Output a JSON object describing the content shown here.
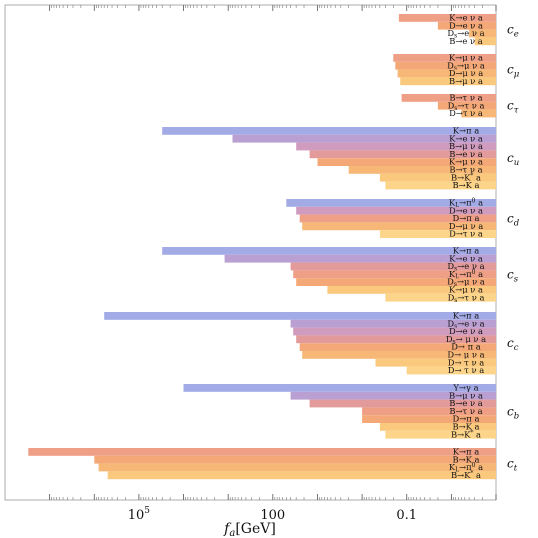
{
  "chart_data": {
    "type": "bar",
    "orientation": "horizontal",
    "xlabel": "f_a[GeV]",
    "x_scale": "log",
    "x_tick_labels": [
      "10^5",
      "100",
      "0.1"
    ],
    "x_ticks": [
      100000,
      100,
      0.1
    ],
    "x_range": [
      100000000,
      0.001
    ],
    "groups": [
      {
        "name": "c_e",
        "label": "c",
        "sub": "e",
        "bars": [
          {
            "label": "K→e ν a",
            "fa": 0.15
          },
          {
            "label": "D→e ν a",
            "fa": 0.02
          },
          {
            "label": "D_s→e ν a",
            "fa": 0.004
          },
          {
            "label": "B→e ν a",
            "fa": 0.003
          }
        ]
      },
      {
        "name": "c_mu",
        "label": "c",
        "sub": "μ",
        "bars": [
          {
            "label": "K→μ ν a",
            "fa": 0.2
          },
          {
            "label": "D_s→μ ν a",
            "fa": 0.18
          },
          {
            "label": "D→μ ν a",
            "fa": 0.16
          },
          {
            "label": "B→μ ν a",
            "fa": 0.14
          }
        ]
      },
      {
        "name": "c_tau",
        "label": "c",
        "sub": "τ",
        "bars": [
          {
            "label": "B→τ ν a",
            "fa": 0.13
          },
          {
            "label": "D_s→τ ν a",
            "fa": 0.02
          },
          {
            "label": "D→τ ν a",
            "fa": 0.006
          }
        ]
      },
      {
        "name": "c_u",
        "label": "c",
        "sub": "u",
        "bars": [
          {
            "label": "K→π a",
            "fa": 30000
          },
          {
            "label": "K→e ν a",
            "fa": 800
          },
          {
            "label": "B→μ ν a",
            "fa": 30
          },
          {
            "label": "B→e ν a",
            "fa": 15
          },
          {
            "label": "K→μ ν a",
            "fa": 10
          },
          {
            "label": "B→τ ν a",
            "fa": 2
          },
          {
            "label": "B→K* a",
            "fa": 0.4
          },
          {
            "label": "B→K a",
            "fa": 0.3
          }
        ]
      },
      {
        "name": "c_d",
        "label": "c",
        "sub": "d",
        "bars": [
          {
            "label": "K_L→π^0 a",
            "fa": 50
          },
          {
            "label": "D→e ν a",
            "fa": 30
          },
          {
            "label": "D→π a",
            "fa": 25
          },
          {
            "label": "D→μ ν a",
            "fa": 22
          },
          {
            "label": "D→τ ν a",
            "fa": 0.4
          }
        ]
      },
      {
        "name": "c_s",
        "label": "c",
        "sub": "s",
        "bars": [
          {
            "label": "K→π a",
            "fa": 30000
          },
          {
            "label": "K→e ν a",
            "fa": 1200
          },
          {
            "label": "D_s→e ν a",
            "fa": 40
          },
          {
            "label": "K_L→π^0 a",
            "fa": 35
          },
          {
            "label": "D_s→μ ν a",
            "fa": 30
          },
          {
            "label": "K→μ ν a",
            "fa": 6
          },
          {
            "label": "D_s→τ ν a",
            "fa": 0.3
          }
        ]
      },
      {
        "name": "c_c",
        "label": "c",
        "sub": "c",
        "bars": [
          {
            "label": "K→π a",
            "fa": 600000
          },
          {
            "label": "D_s→e ν a",
            "fa": 40
          },
          {
            "label": "D→e ν a",
            "fa": 35
          },
          {
            "label": "D_s→ μ ν a",
            "fa": 30
          },
          {
            "label": "D→ π a",
            "fa": 25
          },
          {
            "label": "D→ μ ν a",
            "fa": 22
          },
          {
            "label": "D→ τ ν a",
            "fa": 0.5
          },
          {
            "label": "D→ τ ν a",
            "fa": 0.1
          }
        ]
      },
      {
        "name": "c_b",
        "label": "c",
        "sub": "b",
        "bars": [
          {
            "label": "Υ→γ a",
            "fa": 10000
          },
          {
            "label": "B→μ ν a",
            "fa": 40
          },
          {
            "label": "B→e ν a",
            "fa": 15
          },
          {
            "label": "B→τ ν a",
            "fa": 1
          },
          {
            "label": "D→π a",
            "fa": 1
          },
          {
            "label": "B→K a",
            "fa": 0.4
          },
          {
            "label": "B→K* a",
            "fa": 0.3
          }
        ]
      },
      {
        "name": "c_t",
        "label": "c",
        "sub": "t",
        "bars": [
          {
            "label": "K→π a",
            "fa": 30000000
          },
          {
            "label": "B→K a",
            "fa": 1000000
          },
          {
            "label": "K_L→π^0 a",
            "fa": 800000
          },
          {
            "label": "B→K* a",
            "fa": 500000
          }
        ]
      }
    ]
  }
}
